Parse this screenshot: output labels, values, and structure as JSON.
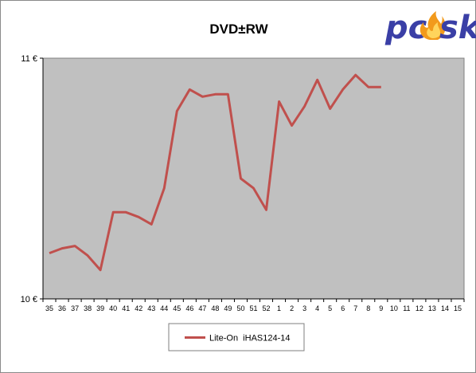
{
  "logo": {
    "text_left": "pc",
    "text_right": "sk",
    "color": "#3a3fa6",
    "flame_color": "#f29a1c"
  },
  "chart_data": {
    "type": "line",
    "title": "DVD±RW",
    "xlabel": "",
    "ylabel": "",
    "categories": [
      "35",
      "36",
      "37",
      "38",
      "39",
      "40",
      "41",
      "42",
      "43",
      "44",
      "45",
      "46",
      "47",
      "48",
      "49",
      "50",
      "51",
      "52",
      "1",
      "2",
      "3",
      "4",
      "5",
      "6",
      "7",
      "8",
      "9",
      "10",
      "11",
      "12",
      "13",
      "14",
      "15"
    ],
    "ylim": [
      10,
      11
    ],
    "y_ticks": [
      {
        "value": 10,
        "label": "10 €"
      },
      {
        "value": 11,
        "label": "11 €"
      }
    ],
    "grid": false,
    "plot_background": "#c0c0c0",
    "legend_position": "bottom-center",
    "series": [
      {
        "name": "Lite-On  iHAS124-14",
        "color": "#c0504d",
        "values": [
          10.19,
          10.21,
          10.22,
          10.18,
          10.12,
          10.36,
          10.36,
          10.34,
          10.31,
          10.46,
          10.78,
          10.87,
          10.84,
          10.85,
          10.85,
          10.5,
          10.46,
          10.37,
          10.82,
          10.72,
          10.8,
          10.91,
          10.79,
          10.87,
          10.93,
          10.88,
          10.88,
          null,
          null,
          null,
          null,
          null,
          null
        ]
      }
    ]
  }
}
